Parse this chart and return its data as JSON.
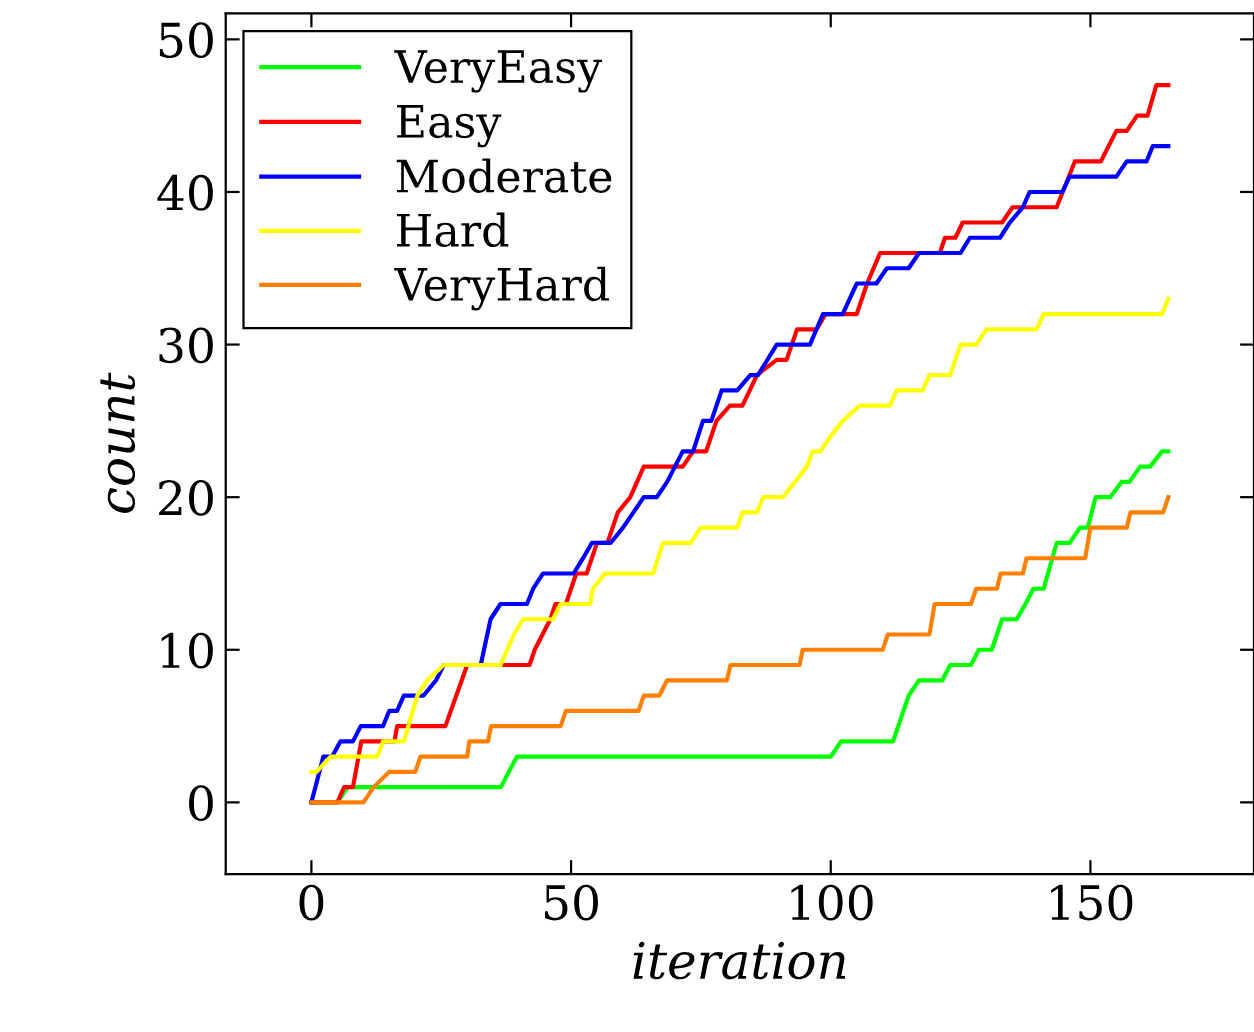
{
  "chart_data": {
    "type": "line",
    "xlabel": "iteration",
    "ylabel": "count",
    "xlim": [
      -16.5,
      181.5
    ],
    "ylim": [
      -4.7,
      51.7
    ],
    "xticks": [
      0,
      50,
      100,
      150
    ],
    "yticks": [
      0,
      10,
      20,
      30,
      40,
      50
    ],
    "grid": false,
    "legend": "top left",
    "marker": "none",
    "line_style": "solid",
    "series": [
      {
        "name": "VeryEasy",
        "color": "#00ff00",
        "x": [
          0,
          5,
          7,
          36.5,
          38,
          39.6,
          100,
          102,
          112,
          115,
          117,
          121.5,
          123,
          127,
          128.5,
          131,
          133,
          135.8,
          137.5,
          139,
          141,
          143.5,
          146,
          148,
          149.5,
          151,
          153.8,
          156,
          157.5,
          159.6,
          161.5,
          163.8,
          165
        ],
        "values": [
          0,
          0,
          1,
          1,
          2,
          3,
          3,
          4,
          4,
          7,
          8,
          8,
          9,
          9,
          10,
          10,
          12,
          12,
          13,
          14,
          14,
          17,
          17,
          18,
          18,
          20,
          20,
          21,
          21,
          22,
          22,
          23,
          23
        ]
      },
      {
        "name": "Easy",
        "color": "#ff0000",
        "x": [
          0,
          5,
          6.3,
          8,
          9.6,
          16,
          16.5,
          25.8,
          30,
          42,
          43,
          46,
          47,
          49,
          51,
          53,
          55,
          57,
          59,
          61.4,
          64,
          71.5,
          73.5,
          76,
          78,
          80.6,
          83,
          85.8,
          89.6,
          91.5,
          93.5,
          97.3,
          99,
          105,
          107,
          109.5,
          121,
          122,
          124,
          125.4,
          133,
          135,
          143.5,
          147,
          152,
          155,
          157,
          159,
          161,
          162.7,
          165
        ],
        "values": [
          0,
          0,
          1,
          1,
          4,
          4,
          5,
          5,
          9,
          9,
          10,
          12,
          13,
          13,
          15,
          15,
          17,
          17,
          19,
          20,
          22,
          22,
          23,
          23,
          25,
          26,
          26,
          28,
          29,
          29,
          31,
          31,
          32,
          32,
          34,
          36,
          36,
          37,
          37,
          38,
          38,
          39,
          39,
          42,
          42,
          44,
          44,
          45,
          45,
          47,
          47
        ]
      },
      {
        "name": "Moderate",
        "color": "#0000ff",
        "x": [
          0,
          2.3,
          4,
          5.6,
          8,
          9.5,
          13.8,
          15,
          16.5,
          17.8,
          21.6,
          24,
          25.5,
          32.6,
          34.5,
          36.4,
          41.5,
          42.7,
          44.6,
          50.5,
          52.3,
          54,
          57.6,
          60,
          62,
          64,
          66.5,
          68.5,
          71.5,
          73.5,
          75.4,
          77,
          79,
          82,
          84.5,
          86,
          89.6,
          96,
          98.5,
          102.3,
          105,
          108.8,
          110.8,
          115,
          117,
          125,
          126.8,
          132.6,
          134.5,
          137,
          138.3,
          144.6,
          146,
          155,
          157,
          160.8,
          162,
          165
        ],
        "values": [
          0,
          3,
          3,
          4,
          4,
          5,
          5,
          6,
          6,
          7,
          7,
          8,
          9,
          9,
          12,
          13,
          13,
          14,
          15,
          15,
          16,
          17,
          17,
          18,
          19,
          20,
          20,
          21,
          23,
          23,
          25,
          25,
          27,
          27,
          28,
          28,
          30,
          30,
          32,
          32,
          34,
          34,
          35,
          35,
          36,
          36,
          37,
          37,
          38,
          39,
          40,
          40,
          41,
          41,
          42,
          42,
          43,
          43
        ]
      },
      {
        "name": "Hard",
        "color": "#ffff00",
        "x": [
          0,
          1,
          3.7,
          12.7,
          13.8,
          17.8,
          20.4,
          22.3,
          25.5,
          36.4,
          37.7,
          39,
          40.8,
          46.5,
          48,
          53.7,
          54.2,
          56.5,
          65.8,
          67.7,
          73,
          75,
          82,
          83,
          85.8,
          87,
          90.8,
          95.4,
          96.5,
          98,
          100,
          102.3,
          105.6,
          111.4,
          112.7,
          117.7,
          119,
          123,
          125,
          128,
          130,
          139.6,
          141,
          163.8,
          165
        ],
        "values": [
          2,
          2,
          3,
          3,
          4,
          4,
          7,
          8,
          9,
          9,
          10,
          11,
          12,
          12,
          13,
          13,
          14,
          15,
          15,
          17,
          17,
          18,
          18,
          19,
          19,
          20,
          20,
          22,
          23,
          23,
          24,
          25,
          26,
          26,
          27,
          27,
          28,
          28,
          30,
          30,
          31,
          31,
          32,
          32,
          33
        ]
      },
      {
        "name": "VeryHard",
        "color": "#ff8000",
        "x": [
          0,
          10,
          12,
          15,
          20,
          21,
          30,
          30.4,
          34,
          34.6,
          48,
          49,
          63,
          64,
          67,
          68.5,
          80,
          80.7,
          94,
          94.6,
          110,
          111,
          119,
          120,
          127,
          128,
          132,
          132.7,
          137,
          137.7,
          149,
          150,
          157,
          157.7,
          164,
          165
        ],
        "values": [
          0,
          0,
          1,
          2,
          2,
          3,
          3,
          4,
          4,
          5,
          5,
          6,
          6,
          7,
          7,
          8,
          8,
          9,
          9,
          10,
          10,
          11,
          11,
          13,
          13,
          14,
          14,
          15,
          15,
          16,
          16,
          18,
          18,
          19,
          19,
          20
        ]
      }
    ]
  }
}
